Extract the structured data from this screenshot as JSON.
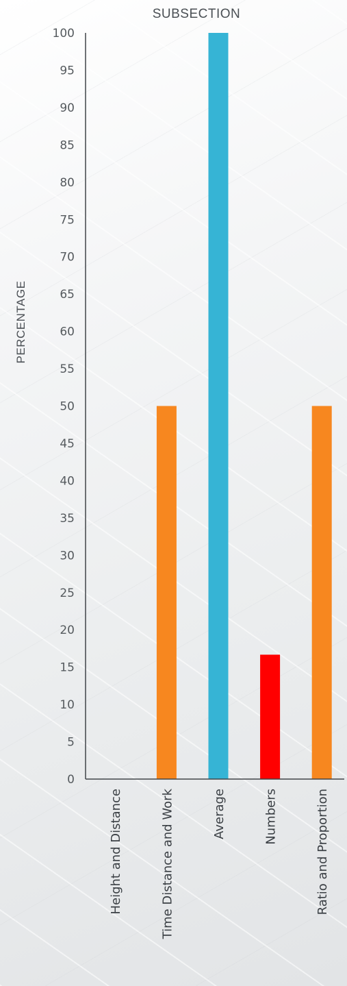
{
  "chart_data": {
    "type": "bar",
    "title": "SUBSECTION",
    "xlabel": "",
    "ylabel": "PERCENTAGE",
    "categories": [
      "Height and Distance",
      "Time Distance and Work",
      "Average",
      "Numbers",
      "Ratio and Proportion"
    ],
    "values": [
      0,
      50,
      100,
      16.67,
      50
    ],
    "colors": [
      "#f7871f",
      "#f7871f",
      "#36b4d5",
      "#ff0000",
      "#f7871f"
    ],
    "ylim": [
      0,
      100
    ],
    "yticks": [
      "0",
      "5",
      "10",
      "15",
      "20",
      "25",
      "30",
      "35",
      "40",
      "45",
      "50",
      "55",
      "60",
      "65",
      "70",
      "75",
      "80",
      "85",
      "90",
      "95",
      "100"
    ],
    "grid": false,
    "legend": "none"
  }
}
